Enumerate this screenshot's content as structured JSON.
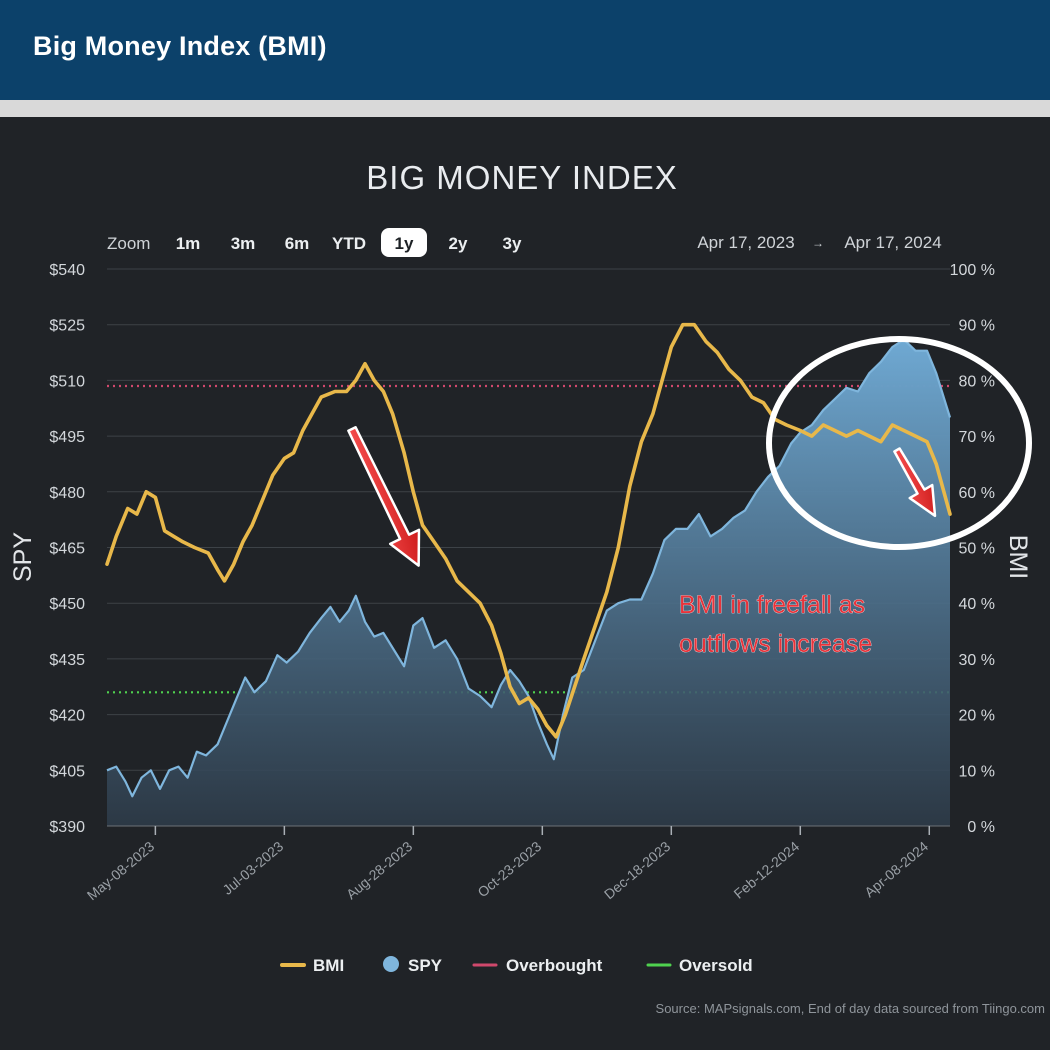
{
  "banner": {
    "title": "Big Money Index (BMI)"
  },
  "chart_data": {
    "type": "line",
    "title": "BIG MONEY INDEX",
    "zoom": {
      "label": "Zoom",
      "options": [
        "1m",
        "3m",
        "6m",
        "YTD",
        "1y",
        "2y",
        "3y"
      ],
      "selected": "1y"
    },
    "range": {
      "from": "Apr 17, 2023",
      "arrow": "→",
      "to": "Apr 17, 2024"
    },
    "y_left": {
      "label": "SPY",
      "ticks": [
        "$390",
        "$405",
        "$420",
        "$435",
        "$450",
        "$465",
        "$480",
        "$495",
        "$510",
        "$525",
        "$540"
      ],
      "ylim": [
        390,
        540
      ]
    },
    "y_right": {
      "label": "BMI",
      "ticks": [
        "0 %",
        "10 %",
        "20 %",
        "30 %",
        "40 %",
        "50 %",
        "60 %",
        "70 %",
        "80 %",
        "90 %",
        "100 %"
      ],
      "ylim": [
        0,
        100
      ]
    },
    "x_ticks": [
      {
        "label": "May-08-2023",
        "date": "2023-05-08"
      },
      {
        "label": "Jul-03-2023",
        "date": "2023-07-03"
      },
      {
        "label": "Aug-28-2023",
        "date": "2023-08-28"
      },
      {
        "label": "Oct-23-2023",
        "date": "2023-10-23"
      },
      {
        "label": "Dec-18-2023",
        "date": "2023-12-18"
      },
      {
        "label": "Feb-12-2024",
        "date": "2024-02-12"
      },
      {
        "label": "Apr-08-2024",
        "date": "2024-04-08"
      }
    ],
    "xlim": [
      "2023-04-17",
      "2024-04-17"
    ],
    "grid": true,
    "legend_position": "bottom",
    "series": [
      {
        "name": "BMI",
        "axis": "right",
        "color": "#e8b84a",
        "points": [
          [
            "2023-04-17",
            47
          ],
          [
            "2023-04-21",
            52
          ],
          [
            "2023-04-26",
            57
          ],
          [
            "2023-04-30",
            56
          ],
          [
            "2023-05-04",
            60
          ],
          [
            "2023-05-08",
            59
          ],
          [
            "2023-05-12",
            53
          ],
          [
            "2023-05-16",
            52
          ],
          [
            "2023-05-20",
            51
          ],
          [
            "2023-05-25",
            50
          ],
          [
            "2023-05-31",
            49
          ],
          [
            "2023-06-04",
            46
          ],
          [
            "2023-06-07",
            44
          ],
          [
            "2023-06-11",
            47
          ],
          [
            "2023-06-15",
            51
          ],
          [
            "2023-06-19",
            54
          ],
          [
            "2023-06-23",
            58
          ],
          [
            "2023-06-28",
            63
          ],
          [
            "2023-07-03",
            66
          ],
          [
            "2023-07-07",
            67
          ],
          [
            "2023-07-11",
            71
          ],
          [
            "2023-07-15",
            74
          ],
          [
            "2023-07-19",
            77
          ],
          [
            "2023-07-25",
            78
          ],
          [
            "2023-07-30",
            78
          ],
          [
            "2023-08-03",
            80
          ],
          [
            "2023-08-07",
            83
          ],
          [
            "2023-08-11",
            80
          ],
          [
            "2023-08-15",
            78
          ],
          [
            "2023-08-19",
            74
          ],
          [
            "2023-08-24",
            67
          ],
          [
            "2023-08-28",
            60
          ],
          [
            "2023-09-01",
            54
          ],
          [
            "2023-09-06",
            51
          ],
          [
            "2023-09-11",
            48
          ],
          [
            "2023-09-16",
            44
          ],
          [
            "2023-09-21",
            42
          ],
          [
            "2023-09-26",
            40
          ],
          [
            "2023-10-01",
            36
          ],
          [
            "2023-10-05",
            31
          ],
          [
            "2023-10-09",
            25
          ],
          [
            "2023-10-13",
            22
          ],
          [
            "2023-10-17",
            23
          ],
          [
            "2023-10-21",
            21
          ],
          [
            "2023-10-25",
            18
          ],
          [
            "2023-10-29",
            16
          ],
          [
            "2023-11-02",
            20
          ],
          [
            "2023-11-06",
            25
          ],
          [
            "2023-11-10",
            30
          ],
          [
            "2023-11-15",
            36
          ],
          [
            "2023-11-20",
            42
          ],
          [
            "2023-11-25",
            50
          ],
          [
            "2023-11-30",
            61
          ],
          [
            "2023-12-05",
            69
          ],
          [
            "2023-12-10",
            74
          ],
          [
            "2023-12-14",
            80
          ],
          [
            "2023-12-18",
            86
          ],
          [
            "2023-12-23",
            90
          ],
          [
            "2023-12-28",
            90
          ],
          [
            "2024-01-02",
            87
          ],
          [
            "2024-01-07",
            85
          ],
          [
            "2024-01-12",
            82
          ],
          [
            "2024-01-17",
            80
          ],
          [
            "2024-01-22",
            77
          ],
          [
            "2024-01-27",
            76
          ],
          [
            "2024-02-01",
            73
          ],
          [
            "2024-02-06",
            72
          ],
          [
            "2024-02-12",
            71
          ],
          [
            "2024-02-17",
            70
          ],
          [
            "2024-02-22",
            72
          ],
          [
            "2024-02-27",
            71
          ],
          [
            "2024-03-03",
            70
          ],
          [
            "2024-03-08",
            71
          ],
          [
            "2024-03-13",
            70
          ],
          [
            "2024-03-18",
            69
          ],
          [
            "2024-03-23",
            72
          ],
          [
            "2024-03-28",
            71
          ],
          [
            "2024-04-02",
            70
          ],
          [
            "2024-04-07",
            69
          ],
          [
            "2024-04-11",
            65
          ],
          [
            "2024-04-17",
            56
          ]
        ]
      },
      {
        "name": "SPY",
        "axis": "left",
        "color": "#7fb6dd",
        "points": [
          [
            "2023-04-17",
            405
          ],
          [
            "2023-04-21",
            406
          ],
          [
            "2023-04-25",
            402
          ],
          [
            "2023-04-28",
            398
          ],
          [
            "2023-05-02",
            403
          ],
          [
            "2023-05-06",
            405
          ],
          [
            "2023-05-10",
            400
          ],
          [
            "2023-05-14",
            405
          ],
          [
            "2023-05-18",
            406
          ],
          [
            "2023-05-22",
            403
          ],
          [
            "2023-05-26",
            410
          ],
          [
            "2023-05-30",
            409
          ],
          [
            "2023-06-04",
            412
          ],
          [
            "2023-06-08",
            418
          ],
          [
            "2023-06-12",
            424
          ],
          [
            "2023-06-16",
            430
          ],
          [
            "2023-06-20",
            426
          ],
          [
            "2023-06-25",
            429
          ],
          [
            "2023-06-30",
            436
          ],
          [
            "2023-07-04",
            434
          ],
          [
            "2023-07-09",
            437
          ],
          [
            "2023-07-14",
            442
          ],
          [
            "2023-07-19",
            446
          ],
          [
            "2023-07-23",
            449
          ],
          [
            "2023-07-27",
            445
          ],
          [
            "2023-07-31",
            448
          ],
          [
            "2023-08-03",
            452
          ],
          [
            "2023-08-07",
            445
          ],
          [
            "2023-08-11",
            441
          ],
          [
            "2023-08-15",
            442
          ],
          [
            "2023-08-20",
            437
          ],
          [
            "2023-08-24",
            433
          ],
          [
            "2023-08-28",
            444
          ],
          [
            "2023-09-01",
            446
          ],
          [
            "2023-09-06",
            438
          ],
          [
            "2023-09-11",
            440
          ],
          [
            "2023-09-16",
            435
          ],
          [
            "2023-09-21",
            427
          ],
          [
            "2023-09-26",
            425
          ],
          [
            "2023-10-01",
            422
          ],
          [
            "2023-10-05",
            428
          ],
          [
            "2023-10-09",
            432
          ],
          [
            "2023-10-13",
            429
          ],
          [
            "2023-10-17",
            425
          ],
          [
            "2023-10-21",
            418
          ],
          [
            "2023-10-25",
            412
          ],
          [
            "2023-10-28",
            408
          ],
          [
            "2023-11-01",
            420
          ],
          [
            "2023-11-05",
            430
          ],
          [
            "2023-11-10",
            432
          ],
          [
            "2023-11-15",
            440
          ],
          [
            "2023-11-20",
            448
          ],
          [
            "2023-11-25",
            450
          ],
          [
            "2023-11-30",
            451
          ],
          [
            "2023-12-05",
            451
          ],
          [
            "2023-12-10",
            458
          ],
          [
            "2023-12-15",
            467
          ],
          [
            "2023-12-20",
            470
          ],
          [
            "2023-12-25",
            470
          ],
          [
            "2023-12-30",
            474
          ],
          [
            "2024-01-04",
            468
          ],
          [
            "2024-01-09",
            470
          ],
          [
            "2024-01-14",
            473
          ],
          [
            "2024-01-19",
            475
          ],
          [
            "2024-01-24",
            480
          ],
          [
            "2024-01-29",
            484
          ],
          [
            "2024-02-03",
            487
          ],
          [
            "2024-02-08",
            493
          ],
          [
            "2024-02-12",
            496
          ],
          [
            "2024-02-17",
            498
          ],
          [
            "2024-02-22",
            502
          ],
          [
            "2024-02-27",
            505
          ],
          [
            "2024-03-03",
            508
          ],
          [
            "2024-03-08",
            507
          ],
          [
            "2024-03-13",
            512
          ],
          [
            "2024-03-18",
            515
          ],
          [
            "2024-03-23",
            519
          ],
          [
            "2024-03-28",
            521
          ],
          [
            "2024-04-02",
            518
          ],
          [
            "2024-04-07",
            518
          ],
          [
            "2024-04-11",
            512
          ],
          [
            "2024-04-17",
            500
          ]
        ]
      }
    ],
    "reference_lines": [
      {
        "name": "Overbought",
        "axis": "right",
        "value": 79,
        "color": "#d0486c",
        "style": "dotted"
      },
      {
        "name": "Oversold",
        "axis": "right",
        "value": 24,
        "color": "#4fd24f",
        "style": "dotted"
      }
    ],
    "annotation": {
      "text": [
        "BMI in freefall as",
        "outflows increase"
      ],
      "color": "#e8333a"
    },
    "legend": [
      {
        "label": "BMI",
        "marker": "line",
        "color": "#e8b84a"
      },
      {
        "label": "SPY",
        "marker": "dot",
        "color": "#7fb6dd"
      },
      {
        "label": "Overbought",
        "marker": "line",
        "color": "#d0486c"
      },
      {
        "label": "Oversold",
        "marker": "line",
        "color": "#4fd24f"
      }
    ],
    "source": "Source: MAPsignals.com, End of day data sourced from Tiingo.com"
  }
}
